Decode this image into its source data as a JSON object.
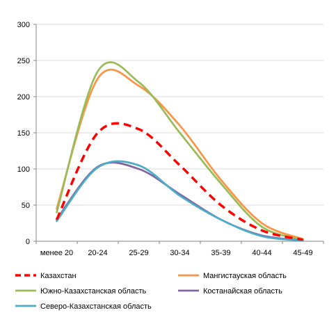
{
  "chart_data": {
    "type": "line",
    "categories": [
      "менее 20",
      "20-24",
      "25-29",
      "30-34",
      "35-39",
      "40-44",
      "45-49"
    ],
    "ylim": [
      0,
      300
    ],
    "yticks": [
      0,
      50,
      100,
      150,
      200,
      250,
      300
    ],
    "grid": "horizontal",
    "legend_position": "bottom",
    "series": [
      {
        "name": "Казахстан",
        "color": "#ff0000",
        "dash": true,
        "values": [
          30,
          150,
          155,
          105,
          50,
          15,
          2
        ]
      },
      {
        "name": "Мангистауская область",
        "color": "#f79646",
        "dash": false,
        "values": [
          45,
          225,
          215,
          160,
          85,
          25,
          3
        ]
      },
      {
        "name": "Южно-Казахстанская область",
        "color": "#9bbb59",
        "dash": false,
        "values": [
          40,
          235,
          220,
          150,
          80,
          20,
          2
        ]
      },
      {
        "name": "Костанайская область",
        "color": "#8064a2",
        "dash": false,
        "values": [
          30,
          103,
          100,
          65,
          30,
          8,
          1
        ]
      },
      {
        "name": "Северо-Казахстанская область",
        "color": "#4bacc6",
        "dash": false,
        "values": [
          28,
          102,
          105,
          63,
          30,
          7,
          1
        ]
      }
    ]
  }
}
